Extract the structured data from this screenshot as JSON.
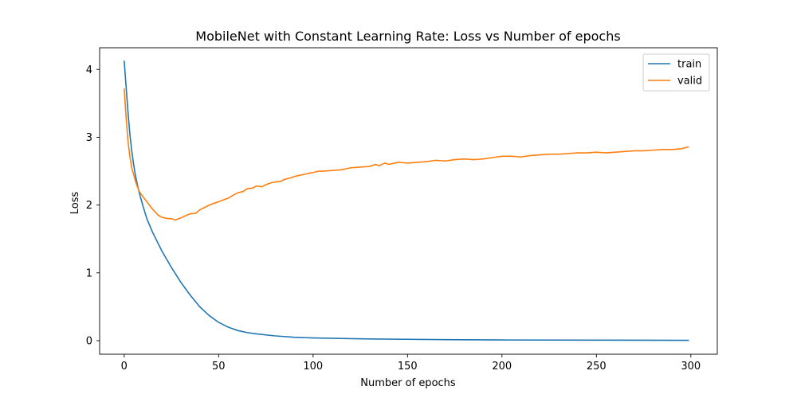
{
  "chart_data": {
    "type": "line",
    "title": "MobileNet with Constant Learning Rate: Loss vs Number of epochs",
    "xlabel": "Number of epochs",
    "ylabel": "Loss",
    "xlim": [
      -13,
      314
    ],
    "ylim": [
      -0.2,
      4.32
    ],
    "xticks": [
      0,
      50,
      100,
      150,
      200,
      250,
      300
    ],
    "yticks": [
      0,
      1,
      2,
      3,
      4
    ],
    "grid": false,
    "legend_position": "top-right",
    "series": [
      {
        "name": "train",
        "color": "#1f77b4",
        "x": [
          0,
          1,
          2,
          3,
          4,
          5,
          6,
          7,
          8,
          10,
          12,
          15,
          20,
          25,
          30,
          35,
          40,
          45,
          50,
          55,
          60,
          65,
          70,
          80,
          90,
          100,
          110,
          120,
          130,
          150,
          170,
          200,
          250,
          299
        ],
        "y": [
          4.13,
          3.75,
          3.38,
          3.05,
          2.8,
          2.6,
          2.43,
          2.3,
          2.18,
          1.98,
          1.8,
          1.6,
          1.32,
          1.08,
          0.86,
          0.67,
          0.5,
          0.37,
          0.27,
          0.2,
          0.15,
          0.12,
          0.1,
          0.07,
          0.05,
          0.04,
          0.035,
          0.03,
          0.025,
          0.02,
          0.015,
          0.01,
          0.008,
          0.005
        ]
      },
      {
        "name": "valid",
        "color": "#ff7f0e",
        "x": [
          0,
          1,
          2,
          3,
          4,
          5,
          6,
          7,
          8,
          10,
          12,
          15,
          18,
          20,
          23,
          25,
          27,
          30,
          33,
          35,
          38,
          40,
          43,
          45,
          48,
          50,
          53,
          55,
          58,
          60,
          63,
          65,
          68,
          70,
          73,
          75,
          78,
          80,
          83,
          85,
          88,
          90,
          93,
          95,
          98,
          100,
          103,
          105,
          110,
          115,
          120,
          125,
          130,
          133,
          135,
          138,
          140,
          145,
          150,
          155,
          160,
          165,
          170,
          175,
          180,
          185,
          190,
          195,
          200,
          205,
          210,
          215,
          220,
          225,
          230,
          235,
          240,
          245,
          250,
          255,
          260,
          265,
          270,
          275,
          280,
          285,
          290,
          295,
          299
        ],
        "y": [
          3.72,
          3.3,
          2.95,
          2.72,
          2.55,
          2.45,
          2.35,
          2.27,
          2.2,
          2.12,
          2.05,
          1.94,
          1.85,
          1.82,
          1.8,
          1.8,
          1.78,
          1.81,
          1.85,
          1.87,
          1.88,
          1.93,
          1.97,
          2.0,
          2.03,
          2.05,
          2.08,
          2.1,
          2.15,
          2.18,
          2.2,
          2.24,
          2.25,
          2.28,
          2.27,
          2.3,
          2.33,
          2.34,
          2.35,
          2.38,
          2.4,
          2.42,
          2.44,
          2.45,
          2.47,
          2.48,
          2.5,
          2.5,
          2.51,
          2.52,
          2.55,
          2.56,
          2.57,
          2.6,
          2.58,
          2.62,
          2.6,
          2.63,
          2.62,
          2.63,
          2.64,
          2.66,
          2.65,
          2.67,
          2.68,
          2.67,
          2.68,
          2.7,
          2.72,
          2.72,
          2.71,
          2.73,
          2.74,
          2.75,
          2.75,
          2.76,
          2.77,
          2.77,
          2.78,
          2.77,
          2.78,
          2.79,
          2.8,
          2.8,
          2.81,
          2.82,
          2.82,
          2.83,
          2.86
        ]
      }
    ]
  }
}
